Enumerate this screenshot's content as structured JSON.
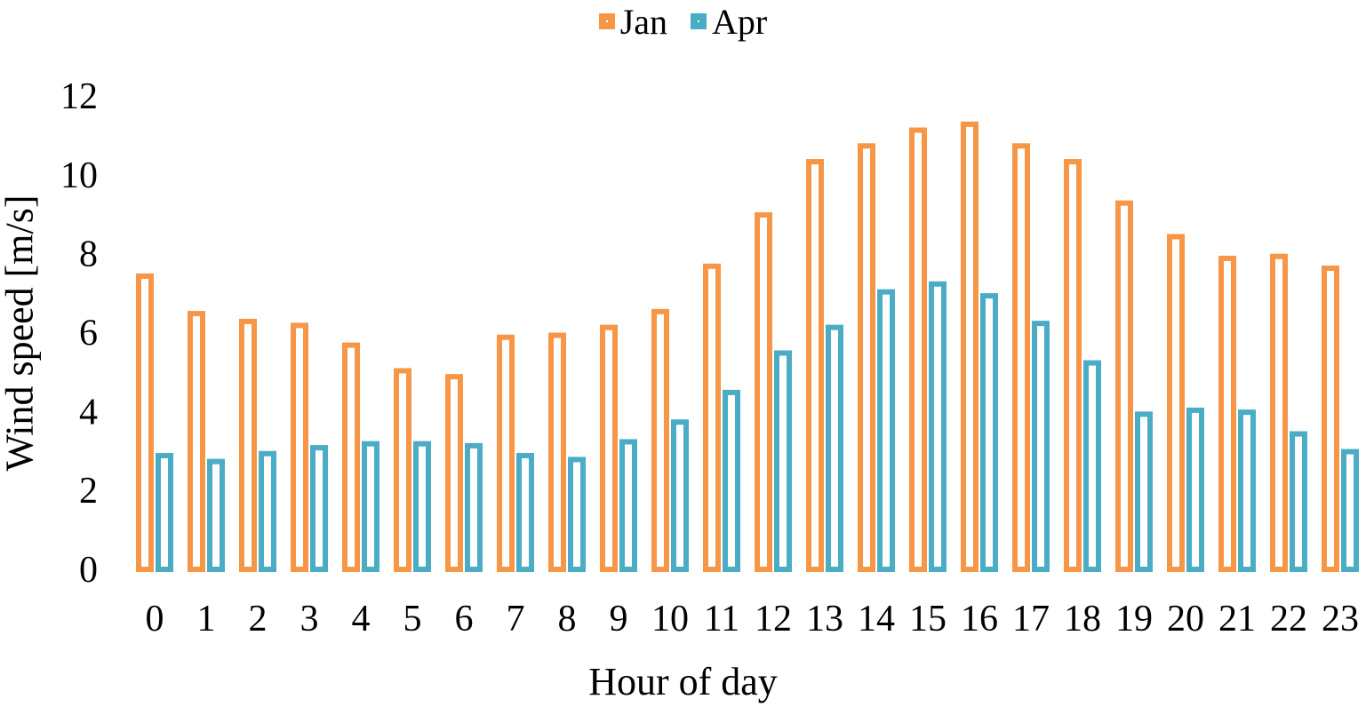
{
  "chart_data": {
    "type": "bar",
    "title": "",
    "xlabel": "Hour of day",
    "ylabel": "Wind speed [m/s]",
    "ylim": [
      0,
      12
    ],
    "yticks": [
      0,
      2,
      4,
      6,
      8,
      10,
      12
    ],
    "categories": [
      "0",
      "1",
      "2",
      "3",
      "4",
      "5",
      "6",
      "7",
      "8",
      "9",
      "10",
      "11",
      "12",
      "13",
      "14",
      "15",
      "16",
      "17",
      "18",
      "19",
      "20",
      "21",
      "22",
      "23"
    ],
    "series": [
      {
        "name": "Jan",
        "color": "#F79646",
        "values": [
          7.5,
          6.55,
          6.35,
          6.25,
          5.75,
          5.1,
          4.95,
          5.95,
          6.0,
          6.2,
          6.6,
          7.75,
          9.05,
          10.4,
          10.8,
          11.2,
          11.35,
          10.8,
          10.4,
          9.35,
          8.5,
          7.95,
          8.0,
          7.7
        ]
      },
      {
        "name": "Apr",
        "color": "#4BACC6",
        "values": [
          2.95,
          2.8,
          3.0,
          3.15,
          3.25,
          3.25,
          3.2,
          2.95,
          2.85,
          3.3,
          3.8,
          4.55,
          5.55,
          6.2,
          7.1,
          7.3,
          7.0,
          6.3,
          5.3,
          4.0,
          4.1,
          4.05,
          3.5,
          3.05
        ]
      }
    ],
    "grid": false,
    "legend_position": "top"
  }
}
